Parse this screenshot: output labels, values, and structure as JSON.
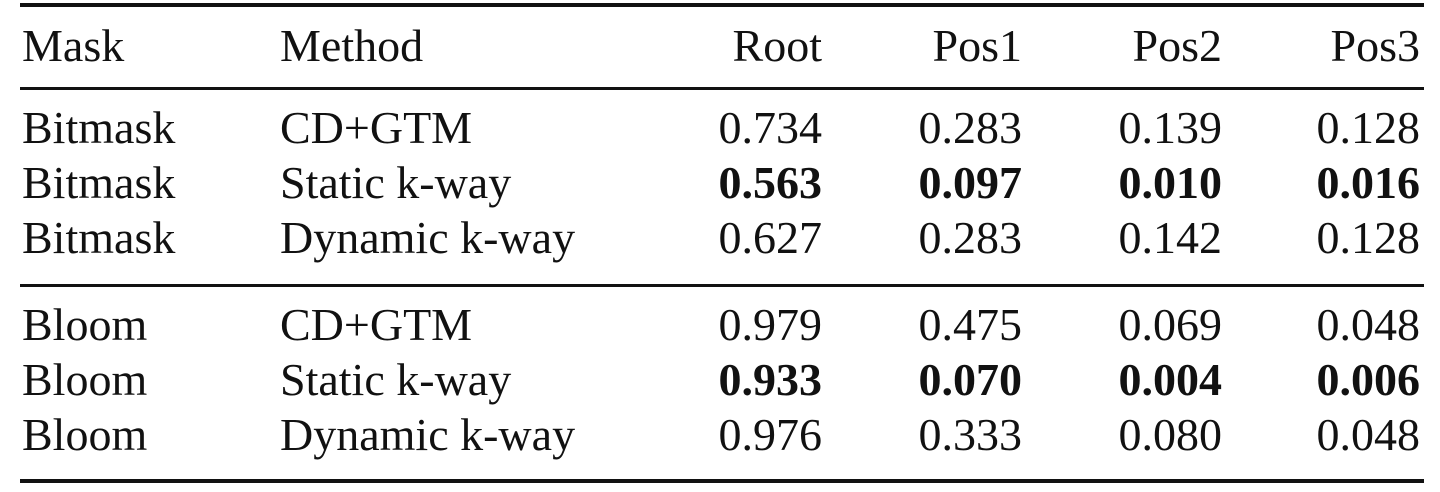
{
  "table": {
    "header": [
      "Mask",
      "Method",
      "Root",
      "Pos1",
      "Pos2",
      "Pos3"
    ],
    "rows": [
      [
        "Bitmask",
        "CD+GTM",
        "0.734",
        "0.283",
        "0.139",
        "0.128"
      ],
      [
        "Bitmask",
        "Static k-way",
        "0.563",
        "0.097",
        "0.010",
        "0.016"
      ],
      [
        "Bitmask",
        "Dynamic k-way",
        "0.627",
        "0.283",
        "0.142",
        "0.128"
      ],
      [
        "Bloom",
        "CD+GTM",
        "0.979",
        "0.475",
        "0.069",
        "0.048"
      ],
      [
        "Bloom",
        "Static k-way",
        "0.933",
        "0.070",
        "0.004",
        "0.006"
      ],
      [
        "Bloom",
        "Dynamic k-way",
        "0.976",
        "0.333",
        "0.080",
        "0.048"
      ]
    ]
  }
}
